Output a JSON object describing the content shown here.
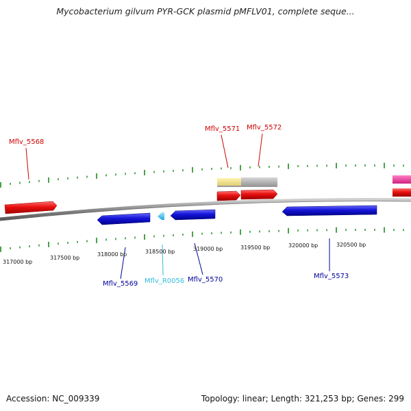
{
  "title": "Mycobacterium gilvum PYR-GCK plasmid pMFLV01, complete seque...",
  "footer": {
    "accession": "Accession: NC_009339",
    "summary": "Topology: linear; Length: 321,253 bp; Genes: 299"
  },
  "colors": {
    "forward_gene": "#e01010",
    "reverse_gene": "#1010d0",
    "rna": "#33bbee",
    "misc_feature_yellow": "#eedd88",
    "misc_feature_grey": "#aaaaaa",
    "magenta_feature": "#e0309a",
    "tick": "#1a8a1a",
    "backbone": "#888888"
  },
  "scale_labels": [
    "317000 bp",
    "317500 bp",
    "318000 bp",
    "318500 bp",
    "319000 bp",
    "319500 bp",
    "320000 bp",
    "320500 bp"
  ],
  "gene_labels": {
    "top": [
      {
        "text": "Mflv_5568",
        "color": "#cc0000"
      },
      {
        "text": "Mflv_5571",
        "color": "#cc0000"
      },
      {
        "text": "Mflv_5572",
        "color": "#cc0000"
      }
    ],
    "bottom": [
      {
        "text": "Mflv_5569",
        "color": "#000099"
      },
      {
        "text": "Mflv_R0056",
        "color": "#33bbdd"
      },
      {
        "text": "Mflv_5570",
        "color": "#000099"
      },
      {
        "text": "Mflv_5573",
        "color": "#000099"
      }
    ]
  }
}
